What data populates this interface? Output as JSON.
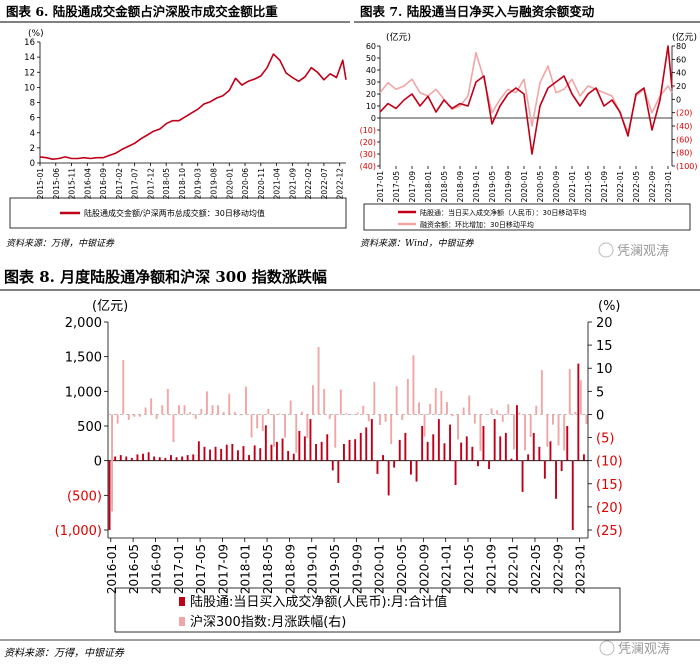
{
  "colors": {
    "dark_red": "#c00018",
    "pink": "#f0a6a6",
    "red_text": "#e00000",
    "axis": "#000000"
  },
  "watermark": {
    "text": "凭澜观涛",
    "icon": "wechat-logo-icon"
  },
  "chart_data": [
    {
      "id": "fig6",
      "type": "line",
      "title": "图表 6.  陆股通成交金额占沪深股市成交金额比重",
      "unit_label": "(%)",
      "ylim": [
        0,
        16
      ],
      "yticks": [
        0,
        2,
        4,
        6,
        8,
        10,
        12,
        14,
        16
      ],
      "x_tick_labels": [
        "2015-01",
        "2015-06",
        "2015-11",
        "2016-04",
        "2016-09",
        "2017-02",
        "2017-07",
        "2017-12",
        "2018-05",
        "2018-10",
        "2019-03",
        "2019-08",
        "2020-01",
        "2020-06",
        "2020-11",
        "2021-04",
        "2021-09",
        "2022-02",
        "2022-07",
        "2022-12"
      ],
      "x": [
        "2015-01",
        "2015-03",
        "2015-05",
        "2015-07",
        "2015-09",
        "2015-11",
        "2016-01",
        "2016-03",
        "2016-05",
        "2016-07",
        "2016-09",
        "2016-11",
        "2017-01",
        "2017-03",
        "2017-05",
        "2017-07",
        "2017-09",
        "2017-11",
        "2018-01",
        "2018-03",
        "2018-05",
        "2018-07",
        "2018-09",
        "2018-11",
        "2019-01",
        "2019-03",
        "2019-05",
        "2019-07",
        "2019-09",
        "2019-11",
        "2020-01",
        "2020-03",
        "2020-05",
        "2020-07",
        "2020-09",
        "2020-11",
        "2021-01",
        "2021-03",
        "2021-05",
        "2021-07",
        "2021-09",
        "2021-11",
        "2022-01",
        "2022-03",
        "2022-05",
        "2022-07",
        "2022-09",
        "2022-11",
        "2023-01",
        "2023-02"
      ],
      "series": [
        {
          "name": "陆股通成交金额/沪深两市总成交额：30日移动均值",
          "color": "#c00018",
          "values": [
            0.8,
            0.7,
            0.5,
            0.6,
            0.8,
            0.6,
            0.6,
            0.7,
            0.6,
            0.7,
            0.7,
            1.0,
            1.3,
            1.8,
            2.2,
            2.6,
            3.2,
            3.7,
            4.2,
            4.5,
            5.2,
            5.6,
            5.6,
            6.1,
            6.6,
            7.1,
            7.8,
            8.1,
            8.6,
            8.9,
            9.6,
            11.2,
            10.3,
            10.8,
            11.1,
            11.5,
            12.6,
            14.4,
            13.6,
            11.9,
            11.3,
            10.8,
            11.4,
            12.6,
            12.0,
            11.0,
            11.8,
            11.3,
            13.6,
            11.0
          ]
        }
      ],
      "legend": "bottom"
    },
    {
      "id": "fig7",
      "type": "line",
      "title": "图表 7.  陆股通当日净买入与融资余额变动",
      "left_unit_label": "(亿元)",
      "right_unit_label": "(亿元)",
      "ylim_left": [
        -40,
        60
      ],
      "yticks_left": [
        "(40)",
        "(30)",
        "(20)",
        "(10)",
        "0",
        "10",
        "20",
        "30",
        "40",
        "50",
        "60"
      ],
      "ylim_right": [
        -100,
        80
      ],
      "yticks_right": [
        "(100)",
        "(80)",
        "(60)",
        "(40)",
        "(20)",
        "0",
        "20",
        "40",
        "60",
        "80"
      ],
      "x_tick_labels": [
        "2017-01",
        "2017-05",
        "2017-09",
        "2018-01",
        "2018-05",
        "2018-09",
        "2019-01",
        "2019-05",
        "2019-09",
        "2020-01",
        "2020-05",
        "2020-09",
        "2021-01",
        "2021-05",
        "2021-09",
        "2022-01",
        "2022-05",
        "2022-09",
        "2023-01"
      ],
      "x": [
        "2017-01",
        "2017-03",
        "2017-05",
        "2017-07",
        "2017-09",
        "2017-11",
        "2018-01",
        "2018-03",
        "2018-05",
        "2018-07",
        "2018-09",
        "2018-11",
        "2019-01",
        "2019-03",
        "2019-05",
        "2019-07",
        "2019-09",
        "2019-11",
        "2020-01",
        "2020-03",
        "2020-05",
        "2020-07",
        "2020-09",
        "2020-11",
        "2021-01",
        "2021-03",
        "2021-05",
        "2021-07",
        "2021-09",
        "2021-11",
        "2022-01",
        "2022-03",
        "2022-05",
        "2022-07",
        "2022-09",
        "2022-11",
        "2023-01",
        "2023-02"
      ],
      "series": [
        {
          "name": "陆股通：当日买入成交净额（人民币）：30日移动平均",
          "color": "#c00018",
          "axis": "left",
          "values": [
            5,
            12,
            8,
            15,
            20,
            10,
            18,
            5,
            15,
            8,
            12,
            10,
            30,
            35,
            -5,
            10,
            20,
            25,
            20,
            -30,
            10,
            25,
            30,
            35,
            20,
            10,
            20,
            25,
            10,
            15,
            5,
            -15,
            20,
            25,
            -10,
            15,
            60,
            25
          ]
        },
        {
          "name": "融资余额：环比增加：30日移动平均",
          "color": "#f0a6a6",
          "axis": "right",
          "values": [
            10,
            25,
            15,
            20,
            30,
            10,
            5,
            15,
            0,
            -15,
            -10,
            5,
            70,
            30,
            -20,
            0,
            15,
            10,
            30,
            -40,
            25,
            50,
            10,
            15,
            30,
            5,
            20,
            15,
            10,
            5,
            -20,
            -50,
            5,
            15,
            -20,
            5,
            20,
            10
          ]
        }
      ],
      "legend": "bottom"
    },
    {
      "id": "fig8",
      "type": "bar",
      "title": "图表 8.  月度陆股通净额和沪深 300 指数涨跌幅",
      "left_unit_label": "(亿元)",
      "right_unit_label": "(%)",
      "ylim_left": [
        -1000,
        2000
      ],
      "yticks_left": [
        "(1,000)",
        "(500)",
        "0",
        "500",
        "1,000",
        "1,500",
        "2,000"
      ],
      "ylim_right": [
        -25,
        20
      ],
      "yticks_right": [
        "(25)",
        "(20)",
        "(15)",
        "(10)",
        "(5)",
        "0",
        "5",
        "10",
        "15",
        "20"
      ],
      "x_tick_labels": [
        "2016-01",
        "2016-05",
        "2016-09",
        "2017-01",
        "2017-05",
        "2017-09",
        "2018-01",
        "2018-05",
        "2018-09",
        "2019-01",
        "2019-05",
        "2019-09",
        "2020-01",
        "2020-05",
        "2020-09",
        "2021-01",
        "2021-05",
        "2021-09",
        "2022-01",
        "2022-05",
        "2022-09",
        "2023-01"
      ],
      "categories": [
        "2016-01",
        "2016-02",
        "2016-03",
        "2016-04",
        "2016-05",
        "2016-06",
        "2016-07",
        "2016-08",
        "2016-09",
        "2016-10",
        "2016-11",
        "2016-12",
        "2017-01",
        "2017-02",
        "2017-03",
        "2017-04",
        "2017-05",
        "2017-06",
        "2017-07",
        "2017-08",
        "2017-09",
        "2017-10",
        "2017-11",
        "2017-12",
        "2018-01",
        "2018-02",
        "2018-03",
        "2018-04",
        "2018-05",
        "2018-06",
        "2018-07",
        "2018-08",
        "2018-09",
        "2018-10",
        "2018-11",
        "2018-12",
        "2019-01",
        "2019-02",
        "2019-03",
        "2019-04",
        "2019-05",
        "2019-06",
        "2019-07",
        "2019-08",
        "2019-09",
        "2019-10",
        "2019-11",
        "2019-12",
        "2020-01",
        "2020-02",
        "2020-03",
        "2020-04",
        "2020-05",
        "2020-06",
        "2020-07",
        "2020-08",
        "2020-09",
        "2020-10",
        "2020-11",
        "2020-12",
        "2021-01",
        "2021-02",
        "2021-03",
        "2021-04",
        "2021-05",
        "2021-06",
        "2021-07",
        "2021-08",
        "2021-09",
        "2021-10",
        "2021-11",
        "2021-12",
        "2022-01",
        "2022-02",
        "2022-03",
        "2022-04",
        "2022-05",
        "2022-06",
        "2022-07",
        "2022-08",
        "2022-09",
        "2022-10",
        "2022-11",
        "2022-12",
        "2023-01",
        "2023-02"
      ],
      "series": [
        {
          "name": "陆股通：当日买入成交净额（人民币）：月：合计值",
          "color": "#c00018",
          "axis": "left",
          "values": [
            -1000,
            60,
            80,
            60,
            40,
            90,
            100,
            120,
            60,
            50,
            40,
            80,
            50,
            60,
            80,
            90,
            280,
            200,
            160,
            200,
            170,
            230,
            240,
            150,
            210,
            80,
            220,
            180,
            510,
            230,
            270,
            320,
            140,
            100,
            430,
            350,
            600,
            240,
            270,
            380,
            -140,
            -320,
            240,
            300,
            310,
            400,
            480,
            600,
            -190,
            80,
            -500,
            -100,
            300,
            400,
            -200,
            -300,
            500,
            270,
            380,
            600,
            250,
            520,
            -350,
            260,
            350,
            200,
            -80,
            500,
            -120,
            600,
            350,
            400,
            30,
            800,
            -450,
            90,
            400,
            200,
            -260,
            280,
            -550,
            -150,
            500,
            -1000,
            1400,
            90
          ]
        },
        {
          "name": "沪深300指数：月涨跌幅（右）",
          "color": "#f0a6a6",
          "axis": "right",
          "values": [
            -21,
            -2,
            11.8,
            -1.2,
            -0.5,
            -0.5,
            1.5,
            3.5,
            -1,
            2,
            5.5,
            -6,
            2,
            2,
            0.5,
            -1,
            1.2,
            5,
            2,
            2,
            0.5,
            4.5,
            0.5,
            -0.2,
            6,
            -5,
            -3,
            -3.6,
            1.2,
            -7,
            0.2,
            -5,
            3,
            -8.3,
            0.6,
            -5.1,
            6.3,
            14.6,
            5.5,
            -1,
            -7.2,
            5.4,
            0.3,
            -0.1,
            0.4,
            1.9,
            -1.5,
            7,
            -2.3,
            -1.6,
            -6.4,
            6.1,
            -1.2,
            7.7,
            12.8,
            2.6,
            -4.8,
            2.3,
            5.7,
            5.1,
            2.7,
            -0.4,
            -5.4,
            1.5,
            4.1,
            -2,
            -7.9,
            -0.1,
            1.3,
            0.9,
            -1.6,
            2.2,
            -7.6,
            0.4,
            -7.8,
            -4.9,
            1.9,
            9.6,
            -7,
            -2.2,
            -6.7,
            -7.8,
            9.8,
            0.5,
            7.4,
            -2.1
          ]
        }
      ],
      "legend": "bottom"
    }
  ],
  "fig6": {
    "title": "图表 6.  陆股通成交金额占沪深股市成交金额比重",
    "unit_label": "(%)",
    "legend_label": "陆股通成交金额/沪深两市总成交额：30日移动均值",
    "source": "资料来源：万得，中银证券"
  },
  "fig7": {
    "title": "图表 7.  陆股通当日净买入与融资余额变动",
    "left_unit_label": "(亿元)",
    "right_unit_label": "(亿元)",
    "legend_label_1": "陆股通：当日买入成交净额（人民币）：30日移动平均",
    "legend_label_2": "融资余额：环比增加：30日移动平均",
    "source": "资料来源：Wind，中银证券"
  },
  "fig8": {
    "title": "图表 8.  月度陆股通净额和沪深 300 指数涨跌幅",
    "left_unit_label": "(亿元)",
    "right_unit_label": "(%)",
    "legend_label_1": "陆股通:当日买入成交净额(人民币):月:合计值",
    "legend_label_2": "沪深300指数:月涨跌幅(右)",
    "source": "资料来源：万得，中银证券"
  }
}
